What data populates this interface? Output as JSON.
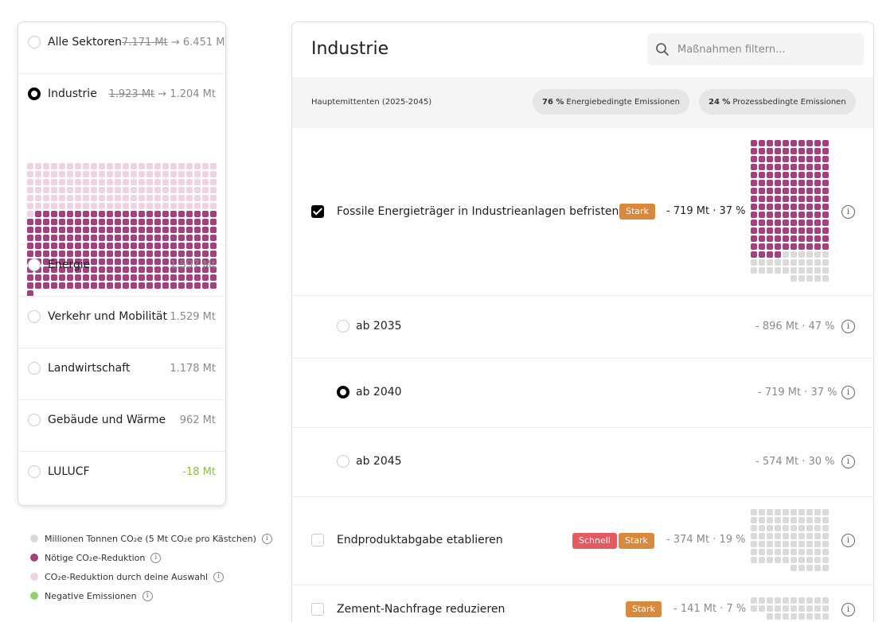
{
  "sectors": [
    {
      "name": "Alle Sektoren",
      "old": "7.171 Mt",
      "value": "6.451 Mt",
      "selected": false
    },
    {
      "name": "Industrie",
      "old": "1.923 Mt",
      "value": "1.204 Mt",
      "selected": true
    },
    {
      "name": "Energie",
      "value": "1.597 Mt",
      "selected": false
    },
    {
      "name": "Verkehr und Mobilität",
      "value": "1.529 Mt",
      "selected": false
    },
    {
      "name": "Landwirtschaft",
      "value": "1.178 Mt",
      "selected": false
    },
    {
      "name": "Gebäude und Wärme",
      "value": "962 Mt",
      "selected": false
    },
    {
      "name": "LULUCF",
      "value": "-18 Mt",
      "selected": false
    }
  ],
  "arrow": "→",
  "industry_waffle": {
    "total_boxes": 385,
    "light_boxes": 145,
    "dark_boxes": 240,
    "colors": {
      "light": "#eed4e2",
      "dark": "#a3417f"
    }
  },
  "legend": [
    {
      "label": "Millionen Tonnen CO₂e (5 Mt CO₂e pro Kästchen)",
      "color": "#dadada"
    },
    {
      "label": "Nötige CO₂e-Reduktion",
      "color": "#a3417f"
    },
    {
      "label": "CO₂e-Reduktion durch deine Auswahl",
      "color": "#eed4e2"
    },
    {
      "label": "Negative Emissionen",
      "color": "#8fd16a"
    }
  ],
  "main": {
    "title": "Industrie",
    "search_placeholder": "Maßnahmen filtern...",
    "emitters_label": "Hauptemittenten (2025-2045)",
    "chips": [
      {
        "pct": "76 %",
        "label": "Energiebedingte Emissionen"
      },
      {
        "pct": "24 %",
        "label": "Prozessbedingte Emissionen"
      }
    ],
    "measures": [
      {
        "name": "Fossile Energieträger in Industrieanlagen befristen",
        "checked": true,
        "tags": [
          "Stark"
        ],
        "value": "- 719 Mt · 37 %",
        "waffle": {
          "total_boxes": 175,
          "reduced_boxes": 144
        }
      },
      {
        "name": "Endproduktabgabe etablieren",
        "checked": false,
        "tags": [
          "Schnell",
          "Stark"
        ],
        "value": "- 374 Mt · 19 %",
        "waffle": {
          "total_boxes": 75,
          "reduced_boxes": 0
        }
      },
      {
        "name": "Zement-Nachfrage reduzieren",
        "checked": false,
        "tags": [
          "Stark"
        ],
        "value": "- 141 Mt · 7 %",
        "waffle": {
          "total_boxes": 28,
          "reduced_boxes": 0
        }
      }
    ],
    "options": [
      {
        "label": "ab 2035",
        "value": "- 896 Mt · 47 %",
        "selected": false
      },
      {
        "label": "ab 2040",
        "value": "- 719 Mt · 37 %",
        "selected": true
      },
      {
        "label": "ab 2045",
        "value": "- 574 Mt · 30 %",
        "selected": false
      }
    ],
    "info_glyph": "i",
    "colors": {
      "stark": "#d9893e",
      "schnell": "#e45a5f"
    }
  }
}
